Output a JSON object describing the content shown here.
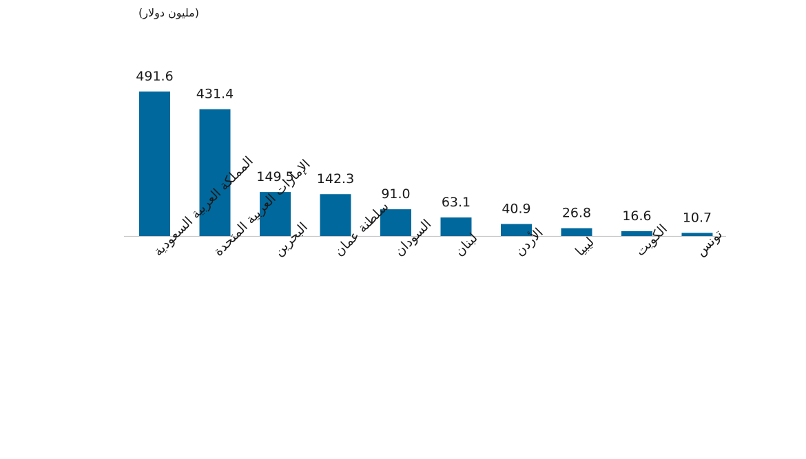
{
  "unit_label": "(مليون دولار)",
  "colors": {
    "bar": "#00689c",
    "axis": "#c8c8c8",
    "text": "#1a1a1a"
  },
  "chart_data": {
    "type": "bar",
    "title": "",
    "xlabel": "",
    "ylabel": "(مليون دولار)",
    "ylim": [
      0,
      491.6
    ],
    "grid": false,
    "legend": "none",
    "categories": [
      "المملكة العربية السعودية",
      "الإمارات العربية المتحدة",
      "البحرين",
      "سلطنة عمان",
      "السودان",
      "لبنان",
      "الأردن",
      "ليبيا",
      "الكويت",
      "تونس"
    ],
    "values": [
      491.6,
      431.4,
      149.5,
      142.3,
      91.0,
      63.1,
      40.9,
      26.8,
      16.6,
      10.7
    ],
    "data_labels": [
      "491.6",
      "431.4",
      "149.5",
      "142.3",
      "91.0",
      "63.1",
      "40.9",
      "26.8",
      "16.6",
      "10.7"
    ]
  }
}
